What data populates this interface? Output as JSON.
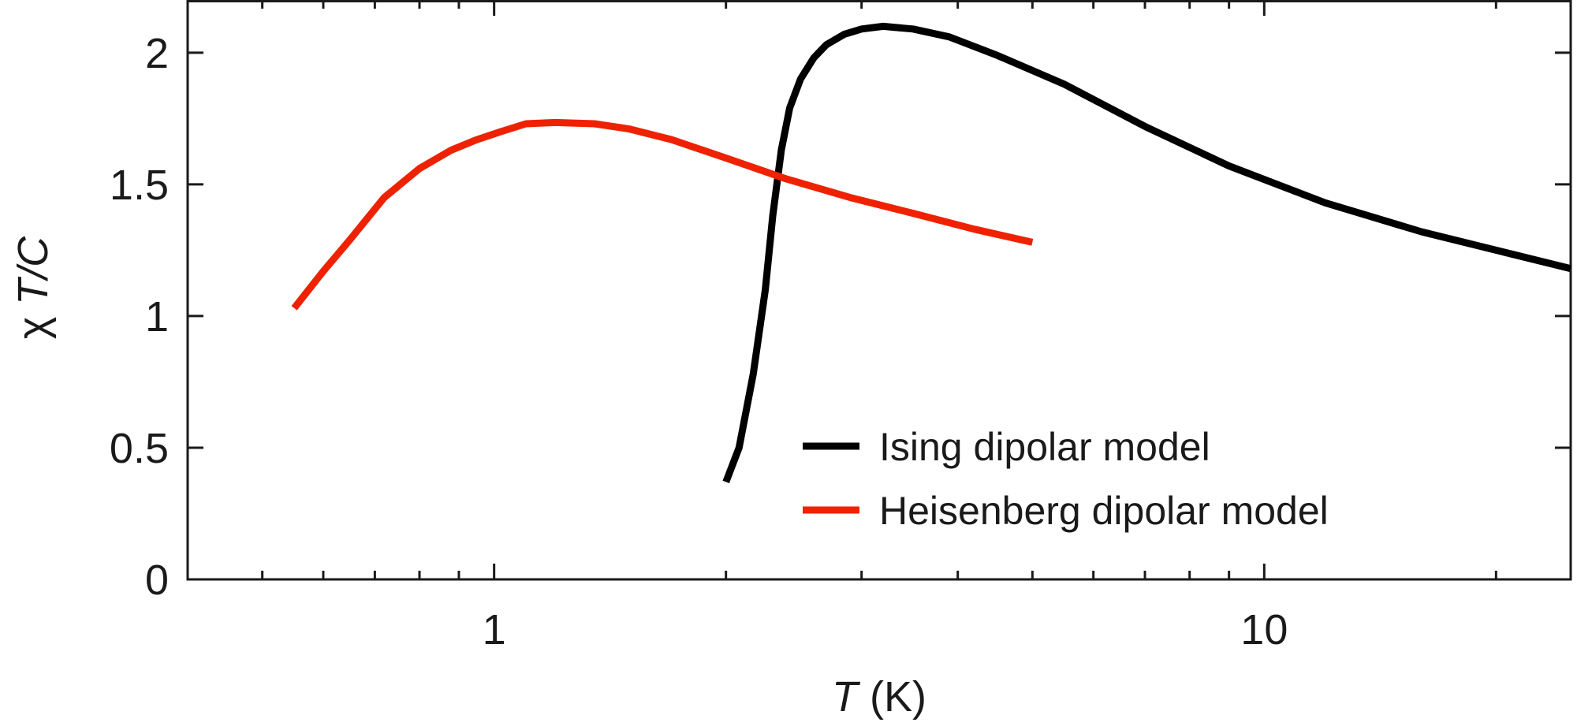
{
  "chart_data": {
    "type": "line",
    "x_scale": "log",
    "xlim": [
      0.4,
      25
    ],
    "ylim": [
      0,
      2.2
    ],
    "xlabel": {
      "var": "T",
      "unit": " (K)"
    },
    "ylabel": {
      "sym": "χ ",
      "var": "T/C"
    },
    "x_major_ticks": [
      {
        "value": 1,
        "label": "1"
      },
      {
        "value": 10,
        "label": "10"
      }
    ],
    "x_minor_ticks": [
      0.5,
      0.6,
      0.7,
      0.8,
      0.9,
      2,
      3,
      4,
      5,
      6,
      7,
      8,
      9,
      20
    ],
    "y_ticks": [
      {
        "value": 0,
        "label": "0"
      },
      {
        "value": 0.5,
        "label": "0.5"
      },
      {
        "value": 1,
        "label": "1"
      },
      {
        "value": 1.5,
        "label": "1.5"
      },
      {
        "value": 2,
        "label": "2"
      }
    ],
    "grid": false,
    "legend_position": "lower-right",
    "series": [
      {
        "name": "Ising dipolar model",
        "color": "#000000",
        "x": [
          2.0,
          2.08,
          2.17,
          2.25,
          2.3,
          2.36,
          2.42,
          2.5,
          2.6,
          2.7,
          2.85,
          3.0,
          3.2,
          3.5,
          3.9,
          4.5,
          5.5,
          7.0,
          9.0,
          12.0,
          16.0,
          20.0,
          25.0
        ],
        "values": [
          0.37,
          0.5,
          0.78,
          1.1,
          1.38,
          1.63,
          1.79,
          1.9,
          1.98,
          2.03,
          2.07,
          2.09,
          2.1,
          2.09,
          2.06,
          1.99,
          1.88,
          1.72,
          1.57,
          1.43,
          1.32,
          1.25,
          1.18
        ]
      },
      {
        "name": "Heisenberg dipolar model",
        "color": "#ee2200",
        "x": [
          0.55,
          0.6,
          0.65,
          0.72,
          0.8,
          0.88,
          0.95,
          1.02,
          1.1,
          1.2,
          1.35,
          1.5,
          1.7,
          2.0,
          2.4,
          2.9,
          3.5,
          4.2,
          5.0
        ],
        "values": [
          1.03,
          1.17,
          1.29,
          1.45,
          1.56,
          1.63,
          1.67,
          1.7,
          1.73,
          1.735,
          1.73,
          1.71,
          1.67,
          1.6,
          1.52,
          1.45,
          1.39,
          1.33,
          1.28
        ]
      }
    ]
  }
}
